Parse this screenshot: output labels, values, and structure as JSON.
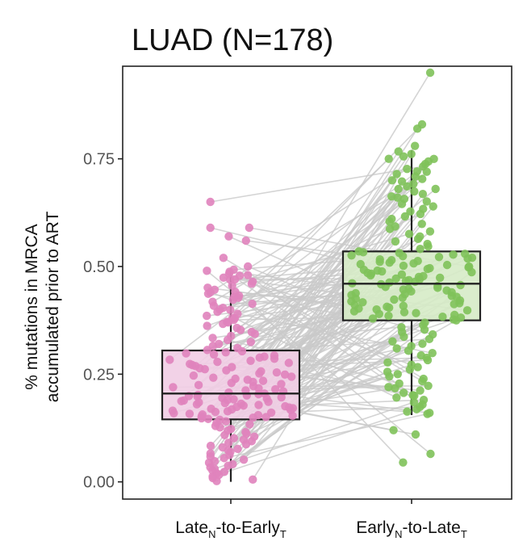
{
  "chart_data": {
    "type": "box_swarm_paired",
    "title": "LUAD (N=178)",
    "ylabel_line1": "% mutations in MRCA",
    "ylabel_line2": "accumulated prior to ART",
    "ylim": [
      -0.04,
      0.965
    ],
    "yticks": [
      0.0,
      0.25,
      0.5,
      0.75
    ],
    "ytick_labels": [
      "0.00",
      "0.25",
      "0.50",
      "0.75"
    ],
    "grid": false,
    "groups": [
      {
        "label_main": "Late",
        "label_sub1": "N",
        "label_mid": "-to-Early",
        "label_sub2": "T",
        "color": "#e083bd",
        "box_fill": "#f1cde4",
        "box": {
          "q1": 0.145,
          "median": 0.205,
          "q3": 0.305,
          "whisker_low": 0.0,
          "whisker_high": 0.495
        },
        "points": [
          0.65,
          0.59,
          0.59,
          0.57,
          0.56,
          0.52,
          0.5,
          0.49,
          0.48,
          0.47,
          0.44,
          0.43,
          0.4,
          0.38,
          0.37
        ]
      },
      {
        "label_main": "Early",
        "label_sub1": "N",
        "label_mid": "-to-Late",
        "label_sub2": "T",
        "color": "#80c25a",
        "box_fill": "#d6ebc6",
        "box": {
          "q1": 0.375,
          "median": 0.46,
          "q3": 0.535,
          "whisker_low": 0.155,
          "whisker_high": 0.77
        },
        "points": [
          0.95,
          0.83,
          0.82,
          0.78,
          0.75,
          0.72,
          0.7,
          0.68,
          0.66,
          0.22,
          0.2,
          0.16,
          0.12,
          0.11,
          0.065,
          0.045
        ]
      }
    ],
    "n_pairs": 178
  }
}
